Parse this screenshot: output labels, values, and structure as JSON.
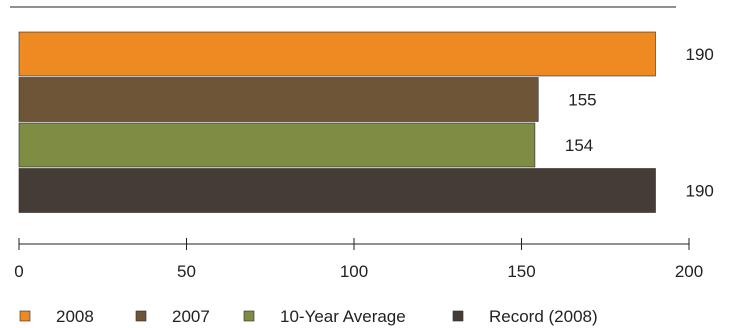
{
  "chart_data": {
    "type": "bar",
    "orientation": "horizontal",
    "series": [
      {
        "name": "2008",
        "value": 190,
        "color": "#ed8a22"
      },
      {
        "name": "2007",
        "value": 155,
        "color": "#6e5538"
      },
      {
        "name": "10-Year Average",
        "value": 154,
        "color": "#7e8c44"
      },
      {
        "name": "Record (2008)",
        "value": 190,
        "color": "#463c36"
      }
    ],
    "value_labels": [
      "190",
      "155",
      "154",
      "190"
    ],
    "xlim": [
      0,
      200
    ],
    "x_ticks": [
      0,
      50,
      100,
      150,
      200
    ],
    "x_tick_labels": [
      "0",
      "50",
      "100",
      "150",
      "200"
    ],
    "grid": false,
    "legend_position": "bottom"
  }
}
